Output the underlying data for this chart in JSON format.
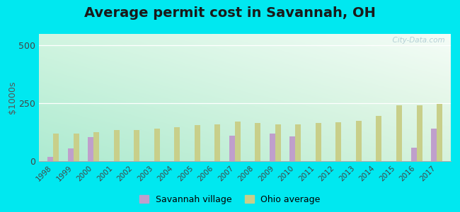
{
  "title": "Average permit cost in Savannah, OH",
  "ylabel": "$1000s",
  "years": [
    1998,
    1999,
    2000,
    2001,
    2002,
    2003,
    2004,
    2005,
    2006,
    2007,
    2008,
    2009,
    2010,
    2011,
    2012,
    2013,
    2014,
    2015,
    2016,
    2017
  ],
  "savannah": [
    18,
    55,
    105,
    0,
    0,
    0,
    0,
    0,
    0,
    110,
    0,
    120,
    108,
    0,
    0,
    0,
    0,
    0,
    58,
    140
  ],
  "ohio": [
    120,
    120,
    125,
    135,
    135,
    140,
    148,
    155,
    160,
    170,
    165,
    158,
    160,
    165,
    168,
    173,
    195,
    240,
    242,
    248
  ],
  "savannah_color": "#bf9fcc",
  "ohio_color": "#c8cf8a",
  "outer_bg": "#00e8f0",
  "ylim": [
    0,
    550
  ],
  "yticks": [
    0,
    250,
    500
  ],
  "bar_width": 0.28,
  "title_fontsize": 14,
  "legend_savannah": "Savannah village",
  "legend_ohio": "Ohio average",
  "watermark": "  City-Data.com",
  "grid_color": "#cccccc",
  "bg_left": "#a8e8d8",
  "bg_right": "#f0f8f0",
  "bg_top": "#f5faf5",
  "bg_bottom": "#b0e8d0"
}
